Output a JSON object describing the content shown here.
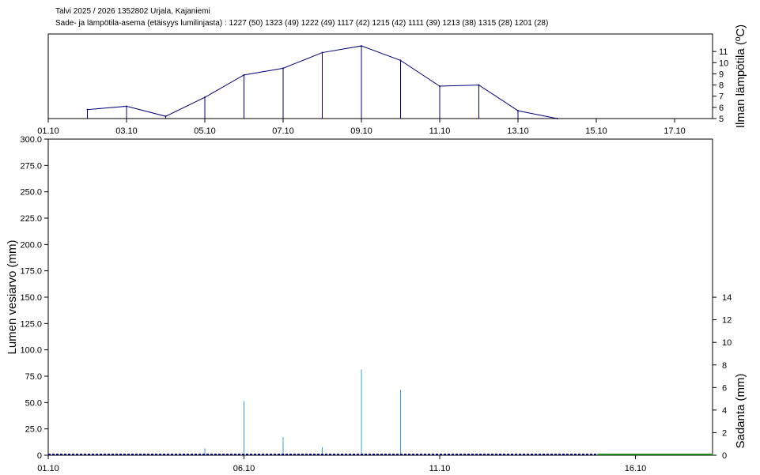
{
  "header": {
    "title": "Talvi 2025 / 2026 1352802 Urjala, Kajaniemi",
    "stations": "Sade- ja lämpötila-asema (etäisyys lumilinjasta) :   1227 (50) 1323 (49) 1222 (49) 1117 (42) 1215 (42) 1111 (39) 1213 (38) 1315 (28) 1201 (28)"
  },
  "colors": {
    "temperature": "#00007f",
    "precipitation": "#3b9edb",
    "snow_line": "#00007f",
    "snow_tail": "#1a8a1a",
    "axis": "#000000"
  },
  "chart_data": [
    {
      "type": "line",
      "ylabel": "Ilman lämpötila (ºC)",
      "ylim": [
        5,
        12
      ],
      "y_ticks": [
        "5",
        "6",
        "7",
        "8",
        "9",
        "10",
        "11"
      ],
      "x_ticks": [
        "01.10",
        "03.10",
        "05.10",
        "07.10",
        "09.10",
        "11.10",
        "13.10",
        "15.10",
        "17.10"
      ],
      "x_day_range": [
        1,
        18
      ],
      "series": [
        {
          "x": [
            2,
            3,
            4,
            5,
            6,
            7,
            8,
            9,
            10,
            11,
            12,
            13,
            14
          ],
          "values": [
            5.8,
            6.1,
            5.2,
            6.9,
            8.9,
            9.5,
            10.9,
            11.5,
            10.2,
            7.9,
            8.0,
            5.7,
            5.0
          ]
        }
      ]
    },
    {
      "type": "bar",
      "ylabel": "Lumen vesiarvo (mm)",
      "ylabel_right": "Sadanta (mm)",
      "ylim": [
        0,
        300
      ],
      "ylim_right": [
        0,
        21
      ],
      "y_ticks": [
        "0",
        "25.0",
        "50.0",
        "75.0",
        "100.0",
        "125.0",
        "150.0",
        "175.0",
        "200.0",
        "225.0",
        "250.0",
        "275.0",
        "300.0"
      ],
      "y_ticks_right": [
        "0",
        "2",
        "4",
        "6",
        "8",
        "10",
        "12",
        "14"
      ],
      "x_ticks": [
        "01.10",
        "06.10",
        "11.10",
        "16.10"
      ],
      "x_day_range": [
        1,
        18
      ],
      "precipitation": {
        "x": [
          5,
          6,
          7,
          8,
          9,
          10
        ],
        "values": [
          0.6,
          4.8,
          1.6,
          0.7,
          7.6,
          5.8
        ]
      },
      "snow_water": {
        "x": [
          1,
          16,
          18
        ],
        "values": [
          0,
          0,
          0
        ]
      }
    }
  ]
}
